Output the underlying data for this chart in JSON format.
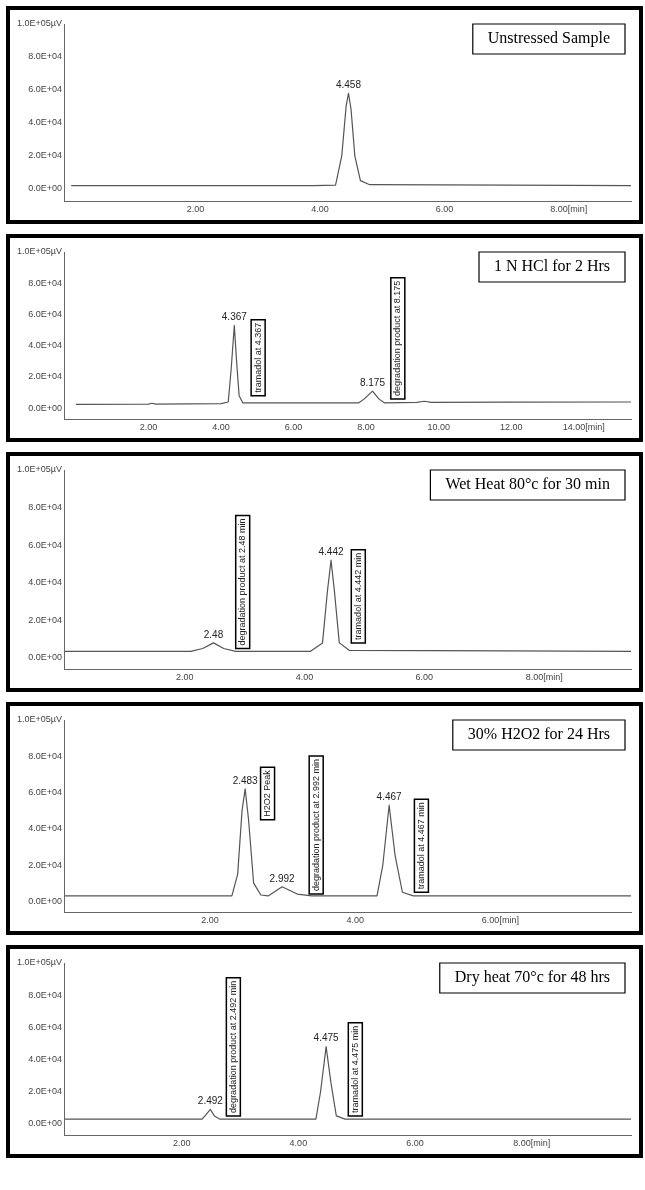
{
  "chart_data": [
    {
      "type": "line",
      "title": "Unstressed Sample",
      "color": "#555555",
      "marker": "none",
      "x": [
        0,
        3.9,
        4.25,
        4.35,
        4.42,
        4.458,
        4.5,
        4.56,
        4.65,
        4.8,
        9
      ],
      "values": [
        2000,
        2000,
        2200,
        20000,
        50000,
        58000,
        48000,
        20000,
        5000,
        2500,
        2000
      ],
      "xlim": [
        -0.1,
        9
      ],
      "xticks": [
        {
          "value": 2,
          "label": "2.00"
        },
        {
          "value": 4,
          "label": "4.00"
        },
        {
          "value": 6,
          "label": "6.00"
        },
        {
          "value": 8,
          "label": "8.00[min]"
        }
      ],
      "ylim": [
        -7500,
        100000
      ],
      "yticks": [
        {
          "value": 0,
          "label": "0.0E+00"
        },
        {
          "value": 20000,
          "label": "2.0E+04"
        },
        {
          "value": 40000,
          "label": "4.0E+04"
        },
        {
          "value": 60000,
          "label": "6.0E+04"
        },
        {
          "value": 80000,
          "label": "8.0E+04"
        },
        {
          "value": 100000,
          "label": "1.0E+05µV"
        }
      ],
      "annotations": [
        {
          "text": "4.458",
          "x": 4.458,
          "y": 58000
        }
      ]
    },
    {
      "type": "line",
      "title": "1 N HCl for 2 Hrs",
      "color": "#555555",
      "marker": "none",
      "x": [
        0,
        2.0,
        2.1,
        2.2,
        4.0,
        4.2,
        4.28,
        4.367,
        4.43,
        4.5,
        4.6,
        7.8,
        7.95,
        8.175,
        8.35,
        8.5,
        9.4,
        9.6,
        9.8,
        15.3
      ],
      "values": [
        2500,
        2700,
        3200,
        2700,
        3000,
        4000,
        25000,
        53000,
        30000,
        8000,
        3500,
        3500,
        6000,
        11000,
        6000,
        3500,
        3800,
        4500,
        3800,
        4000
      ],
      "xlim": [
        -0.3,
        15.3
      ],
      "xticks": [
        {
          "value": 2,
          "label": "2.00"
        },
        {
          "value": 4,
          "label": "4.00"
        },
        {
          "value": 6,
          "label": "6.00"
        },
        {
          "value": 8,
          "label": "8.00"
        },
        {
          "value": 10,
          "label": "10.00"
        },
        {
          "value": 12,
          "label": "12.00"
        },
        {
          "value": 14,
          "label": "14.00[min]"
        }
      ],
      "ylim": [
        -7000,
        100000
      ],
      "yticks": [
        {
          "value": 0,
          "label": "0.0E+00"
        },
        {
          "value": 20000,
          "label": "2.0E+04"
        },
        {
          "value": 40000,
          "label": "4.0E+04"
        },
        {
          "value": 60000,
          "label": "6.0E+04"
        },
        {
          "value": 80000,
          "label": "8.0E+04"
        },
        {
          "value": 100000,
          "label": "1.0E+05µV"
        }
      ],
      "annotations": [
        {
          "text": "4.367",
          "x": 4.367,
          "y": 53000
        },
        {
          "text": "tramadol at 4.367",
          "x": 4.5,
          "y": 8000
        },
        {
          "text": "degradation product at 8.175",
          "x": 8.35,
          "y": 6000
        },
        {
          "text": "8.175",
          "x": 8.175,
          "y": 11000
        }
      ]
    },
    {
      "type": "line",
      "title": "Wet Heat 80°c for 30 min",
      "color": "#555555",
      "marker": "none",
      "x": [
        0,
        2.1,
        2.3,
        2.48,
        2.65,
        2.85,
        4.1,
        4.3,
        4.38,
        4.442,
        4.5,
        4.58,
        4.75,
        9.45
      ],
      "values": [
        3500,
        3500,
        5000,
        8000,
        5000,
        3500,
        3500,
        8000,
        35000,
        52000,
        35000,
        8000,
        4000,
        3500
      ],
      "xlim": [
        0,
        9.45
      ],
      "xticks": [
        {
          "value": 2,
          "label": "2.00"
        },
        {
          "value": 4,
          "label": "4.00"
        },
        {
          "value": 6,
          "label": "6.00"
        },
        {
          "value": 8,
          "label": "8.00[min]"
        }
      ],
      "ylim": [
        -6000,
        100000
      ],
      "yticks": [
        {
          "value": 0,
          "label": "0.0E+00"
        },
        {
          "value": 20000,
          "label": "2.0E+04"
        },
        {
          "value": 40000,
          "label": "4.0E+04"
        },
        {
          "value": 60000,
          "label": "6.0E+04"
        },
        {
          "value": 80000,
          "label": "8.0E+04"
        },
        {
          "value": 100000,
          "label": "1.0E+05µV"
        }
      ],
      "annotations": [
        {
          "text": "2.48",
          "x": 2.48,
          "y": 8000
        },
        {
          "text": "degradation product at 2.48 min",
          "x": 2.65,
          "y": 5000
        },
        {
          "text": "4.442",
          "x": 4.442,
          "y": 52000
        },
        {
          "text": "tramadol at 4.442 min",
          "x": 4.58,
          "y": 8000
        }
      ]
    },
    {
      "type": "line",
      "title": "30% H2O2 for 24 Hrs",
      "color": "#555555",
      "marker": "none",
      "x": [
        0,
        2.3,
        2.38,
        2.44,
        2.483,
        2.53,
        2.6,
        2.7,
        2.8,
        2.992,
        3.2,
        3.4,
        4.3,
        4.38,
        4.467,
        4.55,
        4.65,
        4.8,
        7.8
      ],
      "values": [
        3000,
        3000,
        15000,
        50000,
        62000,
        45000,
        10000,
        3500,
        3000,
        8000,
        4000,
        3000,
        3000,
        20000,
        53000,
        25000,
        5000,
        3000,
        3000
      ],
      "xlim": [
        0,
        7.8
      ],
      "xticks": [
        {
          "value": 2,
          "label": "2.00"
        },
        {
          "value": 4,
          "label": "4.00"
        },
        {
          "value": 6,
          "label": "6.00[min]"
        }
      ],
      "ylim": [
        -6000,
        100000
      ],
      "yticks": [
        {
          "value": 0,
          "label": "0.0E+00"
        },
        {
          "value": 20000,
          "label": "2.0E+04"
        },
        {
          "value": 40000,
          "label": "4.0E+04"
        },
        {
          "value": 60000,
          "label": "6.0E+04"
        },
        {
          "value": 80000,
          "label": "8.0E+04"
        },
        {
          "value": 100000,
          "label": "1.0E+05µV"
        }
      ],
      "annotations": [
        {
          "text": "2.483",
          "x": 2.483,
          "y": 62000
        },
        {
          "text": "H2O2 Peak",
          "x": 2.53,
          "y": 45000
        },
        {
          "text": "2.992",
          "x": 2.992,
          "y": 8000
        },
        {
          "text": "degradation product at 2.992 min",
          "x": 3.2,
          "y": 4000
        },
        {
          "text": "4.467",
          "x": 4.467,
          "y": 53000
        },
        {
          "text": "tramadol at 4.467 min",
          "x": 4.65,
          "y": 5000
        }
      ]
    },
    {
      "type": "line",
      "title": "Dry heat 70°c for 48 hrs",
      "color": "#555555",
      "marker": "none",
      "x": [
        0,
        2.35,
        2.42,
        2.492,
        2.56,
        2.65,
        4.3,
        4.38,
        4.475,
        4.56,
        4.65,
        4.8,
        9.7
      ],
      "values": [
        3000,
        3000,
        6000,
        9000,
        5000,
        3000,
        3000,
        20000,
        48000,
        25000,
        5000,
        3000,
        3000
      ],
      "xlim": [
        0,
        9.7
      ],
      "xticks": [
        {
          "value": 2,
          "label": "2.00"
        },
        {
          "value": 4,
          "label": "4.00"
        },
        {
          "value": 6,
          "label": "6.00"
        },
        {
          "value": 8,
          "label": "8.00[min]"
        }
      ],
      "ylim": [
        -7000,
        100000
      ],
      "yticks": [
        {
          "value": 0,
          "label": "0.0E+00"
        },
        {
          "value": 20000,
          "label": "2.0E+04"
        },
        {
          "value": 40000,
          "label": "4.0E+04"
        },
        {
          "value": 60000,
          "label": "6.0E+04"
        },
        {
          "value": 80000,
          "label": "8.0E+04"
        },
        {
          "value": 100000,
          "label": "1.0E+05µV"
        }
      ],
      "annotations": [
        {
          "text": "2.492",
          "x": 2.492,
          "y": 9000
        },
        {
          "text": "degradation product at 2.492 min",
          "x": 2.56,
          "y": 5000
        },
        {
          "text": "4.475",
          "x": 4.475,
          "y": 48000
        },
        {
          "text": "tramadol at 4.475 min",
          "x": 4.65,
          "y": 5000
        }
      ]
    }
  ]
}
